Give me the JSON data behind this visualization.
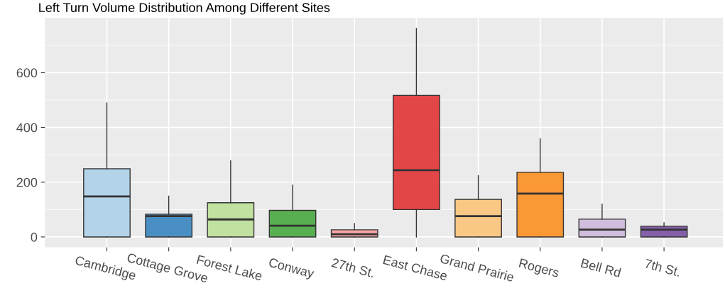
{
  "chart_data": {
    "type": "box",
    "title": "Left Turn Volume Distribution Among Different Sites",
    "categories": [
      "Cambridge",
      "Cottage Grove",
      "Forest Lake",
      "Conway",
      "27th St.",
      "East Chase",
      "Grand Prairie",
      "Rogers",
      "Bell Rd",
      "7th St."
    ],
    "colors": [
      "#b3d3e8",
      "#4a8fc3",
      "#c0e19f",
      "#58af51",
      "#f8a7a6",
      "#e34647",
      "#f9c885",
      "#f99834",
      "#d1bedc",
      "#8560aa"
    ],
    "boxes": [
      {
        "low": 0,
        "q1": 0,
        "median": 148,
        "q3": 249,
        "high": 489
      },
      {
        "low": 0,
        "q1": 0,
        "median": 76,
        "q3": 83,
        "high": 149
      },
      {
        "low": 0,
        "q1": 0,
        "median": 64,
        "q3": 125,
        "high": 278
      },
      {
        "low": 0,
        "q1": 0,
        "median": 41,
        "q3": 97,
        "high": 189
      },
      {
        "low": 0,
        "q1": 0,
        "median": 10,
        "q3": 26,
        "high": 49
      },
      {
        "low": 0,
        "q1": 100,
        "median": 244,
        "q3": 517,
        "high": 762
      },
      {
        "low": 0,
        "q1": 0,
        "median": 76,
        "q3": 137,
        "high": 224
      },
      {
        "low": 0,
        "q1": 0,
        "median": 158,
        "q3": 236,
        "high": 358
      },
      {
        "low": 0,
        "q1": 0,
        "median": 27,
        "q3": 65,
        "high": 120
      },
      {
        "low": 0,
        "q1": 0,
        "median": 27,
        "q3": 39,
        "high": 52
      }
    ],
    "ylim": [
      -38,
      800
    ],
    "yticks": [
      0,
      200,
      400,
      600
    ],
    "grid": true
  }
}
